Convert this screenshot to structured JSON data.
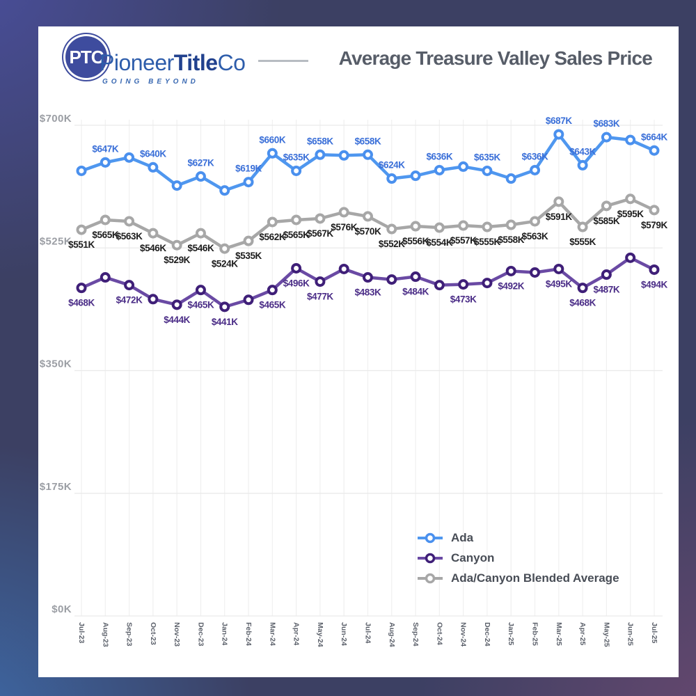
{
  "header": {
    "logo": {
      "monogram": "PTC",
      "brand_pioneer": "Pioneer",
      "brand_title": "Title",
      "brand_co": "Co",
      "tagline": "GOING BEYOND"
    },
    "title": "Average Treasure Valley Sales Price"
  },
  "chart_data": {
    "type": "line",
    "title": "Average Treasure Valley Sales Price",
    "unit": "USD thousands",
    "ylim": [
      0,
      700
    ],
    "grid": "on",
    "legend_position": "inside-bottom-right",
    "x": [
      "Jul-23",
      "Aug-23",
      "Sep-23",
      "Oct-23",
      "Nov-23",
      "Dec-23",
      "Jan-24",
      "Feb-24",
      "Mar-24",
      "Apr-24",
      "May-24",
      "Jun-24",
      "Jul-24",
      "Aug-24",
      "Sep-24",
      "Oct-24",
      "Nov-24",
      "Dec-24",
      "Jan-25",
      "Feb-25",
      "Mar-25",
      "Apr-25",
      "May-25",
      "Jun-25",
      "Jul-25"
    ],
    "y_ticks": [
      {
        "label": "$700K",
        "value": 700
      },
      {
        "label": "$525K",
        "value": 525
      },
      {
        "label": "$350K",
        "value": 350
      },
      {
        "label": "$175K",
        "value": 175
      },
      {
        "label": "$0K",
        "value": 0
      }
    ],
    "series": [
      {
        "name": "Ada",
        "color": "#4f97ef",
        "marker_color": "#4a90ee",
        "label_color": "#3a6fd8",
        "label_position": "above",
        "values": [
          635,
          647,
          654,
          640,
          614,
          627,
          607,
          619,
          660,
          635,
          658,
          657,
          658,
          624,
          628,
          636,
          641,
          635,
          624,
          636,
          687,
          643,
          683,
          679,
          664
        ],
        "point_labels": [
          null,
          "$647K",
          null,
          "$640K",
          null,
          "$627K",
          null,
          "$619K",
          "$660K",
          "$635K",
          "$658K",
          null,
          "$658K",
          "$624K",
          null,
          "$636K",
          null,
          "$635K",
          null,
          "$636K",
          "$687K",
          "$643K",
          "$683K",
          null,
          "$664K"
        ]
      },
      {
        "name": "Canyon",
        "color": "#6a4aa4",
        "marker_color": "#3f1f78",
        "label_color": "#4b2d87",
        "label_position": "below",
        "values": [
          468,
          483,
          472,
          452,
          444,
          465,
          441,
          451,
          465,
          496,
          477,
          495,
          483,
          480,
          484,
          472,
          473,
          475,
          492,
          490,
          495,
          468,
          487,
          511,
          494
        ],
        "point_labels": [
          "$468K",
          null,
          "$472K",
          null,
          "$444K",
          "$465K",
          "$441K",
          null,
          "$465K",
          "$496K",
          "$477K",
          null,
          "$483K",
          null,
          "$484K",
          null,
          "$473K",
          null,
          "$492K",
          null,
          "$495K",
          "$468K",
          "$487K",
          null,
          "$494K"
        ]
      },
      {
        "name": "Ada/Canyon Blended Average",
        "color": "#a7a7a7",
        "marker_color": "#a7a7a7",
        "label_color": "#1d1d1d",
        "label_position": "below",
        "values": [
          551,
          565,
          563,
          546,
          529,
          546,
          524,
          535,
          562,
          565,
          567,
          576,
          570,
          552,
          556,
          554,
          557,
          555,
          558,
          563,
          591,
          555,
          585,
          595,
          579
        ],
        "point_labels": [
          "$551K",
          "$565K",
          "$563K",
          "$546K",
          "$529K",
          "$546K",
          "$524K",
          "$535K",
          "$562K",
          "$565K",
          "$567K",
          "$576K",
          "$570K",
          "$552K",
          "$556K",
          "$554K",
          "$557K",
          "$555K",
          "$558K",
          "$563K",
          "$591K",
          "$555K",
          "$585K",
          "$595K",
          "$579K"
        ]
      }
    ],
    "colors": {
      "background_card": "#ffffff",
      "grid_vertical": "#f0f0f0",
      "grid_horizontal": "#e9e9e9",
      "border_gradient_top_left": "#4a4f9e",
      "border_gradient_bottom_left": "#3d6aa8",
      "border_gradient_top_right": "#383c5e",
      "border_gradient_bottom_right": "#68486f"
    }
  }
}
